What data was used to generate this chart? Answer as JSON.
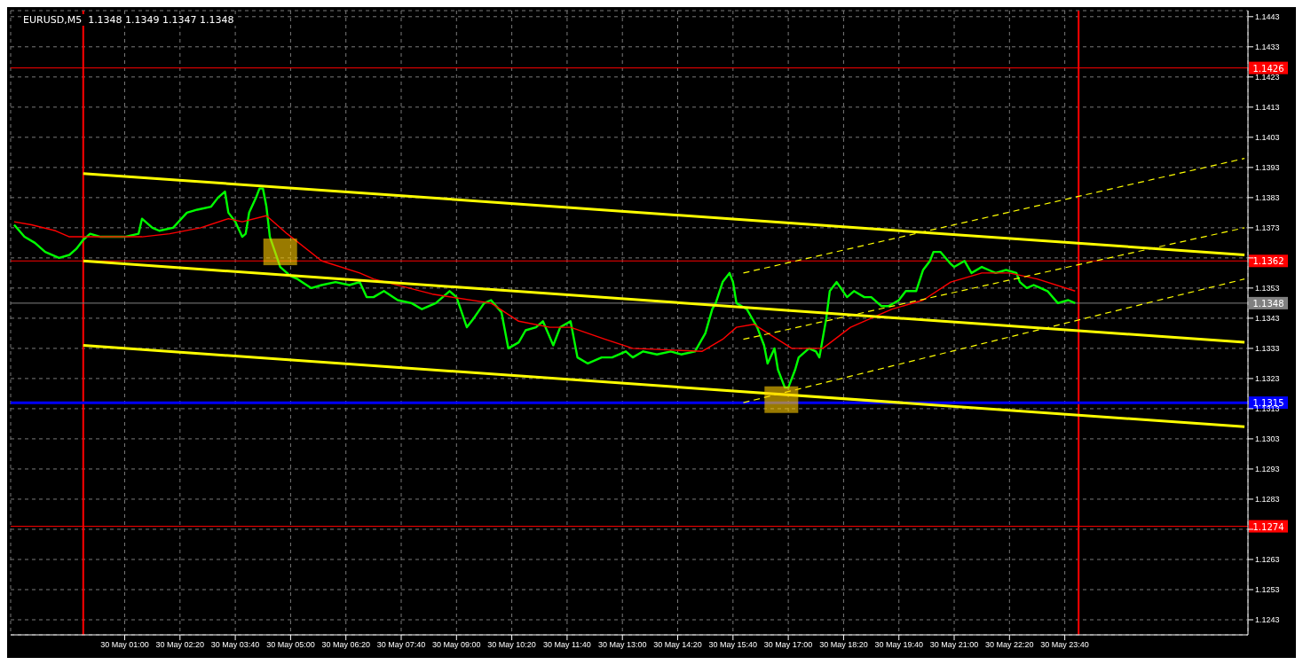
{
  "chart_data": {
    "type": "line",
    "title": "EURUSD,M5  1.1348 1.1349 1.1347 1.1348",
    "xlim": [
      "--05-29T22:15",
      "--05-31T04:05"
    ],
    "ylim": [
      1.1238,
      1.1445
    ],
    "xticks": [
      {
        "value": "--05-30T01:00",
        "label": "30 May 01:00"
      },
      {
        "value": "--05-30T02:20",
        "label": "30 May 02:20"
      },
      {
        "value": "--05-30T03:40",
        "label": "30 May 03:40"
      },
      {
        "value": "--05-30T05:00",
        "label": "30 May 05:00"
      },
      {
        "value": "--05-30T06:20",
        "label": "30 May 06:20"
      },
      {
        "value": "--05-30T07:40",
        "label": "30 May 07:40"
      },
      {
        "value": "--05-30T09:00",
        "label": "30 May 09:00"
      },
      {
        "value": "--05-30T10:20",
        "label": "30 May 10:20"
      },
      {
        "value": "--05-30T11:40",
        "label": "30 May 11:40"
      },
      {
        "value": "--05-30T13:00",
        "label": "30 May 13:00"
      },
      {
        "value": "--05-30T14:20",
        "label": "30 May 14:20"
      },
      {
        "value": "--05-30T15:40",
        "label": "30 May 15:40"
      },
      {
        "value": "--05-30T17:00",
        "label": "30 May 17:00"
      },
      {
        "value": "--05-30T18:20",
        "label": "30 May 18:20"
      },
      {
        "value": "--05-30T19:40",
        "label": "30 May 19:40"
      },
      {
        "value": "--05-30T21:00",
        "label": "30 May 21:00"
      },
      {
        "value": "--05-30T22:20",
        "label": "30 May 22:20"
      },
      {
        "value": "--05-30T23:40",
        "label": "30 May 23:40"
      }
    ],
    "yticks": [
      1.1243,
      1.1253,
      1.1263,
      {
        "value": 1.1273,
        "label": null
      },
      1.1283,
      1.1293,
      1.1303,
      1.1313,
      1.1323,
      1.1333,
      1.1343,
      1.1353,
      {
        "value": 1.1363,
        "label": null
      },
      1.1373,
      1.1383,
      1.1393,
      1.1403,
      1.1413,
      1.1423,
      1.1433,
      1.1443
    ],
    "grid": true,
    "series": [
      {
        "color": "#00ff00",
        "x": [
          "--05-29T22:20",
          "--05-29T22:35",
          "--05-29T22:50",
          "--05-29T23:05",
          "--05-29T23:25",
          "--05-29T23:40",
          "--05-29T23:50",
          "--05-30T00:00",
          "--05-30T00:10",
          "--05-30T00:25",
          "--05-30T00:40",
          "--05-30T01:00",
          "--05-30T01:20",
          "--05-30T01:25",
          "--05-30T01:40",
          "--05-30T01:50",
          "--05-30T02:10",
          "--05-30T02:30",
          "--05-30T02:45",
          "--05-30T03:05",
          "--05-30T03:15",
          "--05-30T03:25",
          "--05-30T03:30",
          "--05-30T03:40",
          "--05-30T03:50",
          "--05-30T03:55",
          "--05-30T04:00",
          "--05-30T04:10",
          "--05-30T04:15",
          "--05-30T04:20",
          "--05-30T04:25",
          "--05-30T04:30",
          "--05-30T04:45",
          "--05-30T05:00",
          "--05-30T05:10",
          "--05-30T05:30",
          "--05-30T05:45",
          "--05-30T06:05",
          "--05-30T06:25",
          "--05-30T06:40",
          "--05-30T06:50",
          "--05-30T07:00",
          "--05-30T07:15",
          "--05-30T07:35",
          "--05-30T07:55",
          "--05-30T08:10",
          "--05-30T08:30",
          "--05-30T08:50",
          "--05-30T09:00",
          "--05-30T09:15",
          "--05-30T09:25",
          "--05-30T09:40",
          "--05-30T09:50",
          "--05-30T10:05",
          "--05-30T10:15",
          "--05-30T10:30",
          "--05-30T10:40",
          "--05-30T10:55",
          "--05-30T11:05",
          "--05-30T11:20",
          "--05-30T11:30",
          "--05-30T11:45",
          "--05-30T11:55",
          "--05-30T12:10",
          "--05-30T12:30",
          "--05-30T12:45",
          "--05-30T13:05",
          "--05-30T13:15",
          "--05-30T13:30",
          "--05-30T13:50",
          "--05-30T14:10",
          "--05-30T14:25",
          "--05-30T14:45",
          "--05-30T15:00",
          "--05-30T15:10",
          "--05-30T15:15",
          "--05-30T15:25",
          "--05-30T15:35",
          "--05-30T15:40",
          "--05-30T15:45",
          "--05-30T16:00",
          "--05-30T16:05",
          "--05-30T16:15",
          "--05-30T16:25",
          "--05-30T16:30",
          "--05-30T16:40",
          "--05-30T16:45",
          "--05-30T16:55",
          "--05-30T17:00",
          "--05-30T17:10",
          "--05-30T17:15",
          "--05-30T17:30",
          "--05-30T17:40",
          "--05-30T17:45",
          "--05-30T17:55",
          "--05-30T18:00",
          "--05-30T18:10",
          "--05-30T18:25",
          "--05-30T18:35",
          "--05-30T18:50",
          "--05-30T19:00",
          "--05-30T19:15",
          "--05-30T19:25",
          "--05-30T19:40",
          "--05-30T19:50",
          "--05-30T20:05",
          "--05-30T20:15",
          "--05-30T20:25",
          "--05-30T20:30",
          "--05-30T20:40",
          "--05-30T20:55",
          "--05-30T21:00",
          "--05-30T21:15",
          "--05-30T21:25",
          "--05-30T21:40",
          "--05-30T21:50",
          "--05-30T22:00",
          "--05-30T22:15",
          "--05-30T22:30",
          "--05-30T22:35",
          "--05-30T22:45",
          "--05-30T22:55",
          "--05-30T23:05",
          "--05-30T23:15",
          "--05-30T23:30",
          "--05-30T23:45",
          "--05-30T23:55"
        ],
        "values": [
          1.1374,
          1.137,
          1.1368,
          1.1365,
          1.1363,
          1.1364,
          1.1366,
          1.1369,
          1.1371,
          1.137,
          1.137,
          1.137,
          1.1371,
          1.1376,
          1.1373,
          1.1372,
          1.1373,
          1.1378,
          1.1379,
          1.138,
          1.1383,
          1.1385,
          1.1378,
          1.1375,
          1.137,
          1.1371,
          1.1378,
          1.1383,
          1.1386,
          1.1386,
          1.138,
          1.137,
          1.136,
          1.1357,
          1.1356,
          1.1353,
          1.1354,
          1.1355,
          1.1354,
          1.1355,
          1.135,
          1.135,
          1.1352,
          1.1349,
          1.1348,
          1.1346,
          1.1348,
          1.1352,
          1.135,
          1.134,
          1.1343,
          1.1348,
          1.1349,
          1.1345,
          1.1333,
          1.1335,
          1.1339,
          1.134,
          1.1342,
          1.1334,
          1.134,
          1.1342,
          1.133,
          1.1328,
          1.133,
          1.133,
          1.1332,
          1.133,
          1.1332,
          1.1331,
          1.1332,
          1.1331,
          1.1332,
          1.1338,
          1.1346,
          1.1348,
          1.1355,
          1.1358,
          1.1355,
          1.1348,
          1.1346,
          1.1344,
          1.134,
          1.1334,
          1.1328,
          1.1333,
          1.1326,
          1.132,
          1.132,
          1.1326,
          1.133,
          1.1333,
          1.1332,
          1.133,
          1.1343,
          1.1352,
          1.1355,
          1.135,
          1.1352,
          1.135,
          1.135,
          1.1347,
          1.1347,
          1.1349,
          1.1352,
          1.1352,
          1.1359,
          1.1362,
          1.1365,
          1.1365,
          1.1361,
          1.136,
          1.1362,
          1.1358,
          1.136,
          1.1359,
          1.1358,
          1.1359,
          1.1358,
          1.1355,
          1.1353,
          1.1354,
          1.1353,
          1.1352,
          1.1348,
          1.1349,
          1.1348
        ]
      },
      {
        "color": "#ff0000",
        "x": [
          "--05-29T22:20",
          "--05-29T22:45",
          "--05-29T23:20",
          "--05-29T23:40",
          "--05-30T00:25",
          "--05-30T01:25",
          "--05-30T02:05",
          "--05-30T02:50",
          "--05-30T03:30",
          "--05-30T03:50",
          "--05-30T04:25",
          "--05-30T04:55",
          "--05-30T05:45",
          "--05-30T06:40",
          "--05-30T07:00",
          "--05-30T08:25",
          "--05-30T09:50",
          "--05-30T10:30",
          "--05-30T11:15",
          "--05-30T11:45",
          "--05-30T12:35",
          "--05-30T13:15",
          "--05-30T14:55",
          "--05-30T15:25",
          "--05-30T15:45",
          "--05-30T16:10",
          "--05-30T17:05",
          "--05-30T17:50",
          "--05-30T18:30",
          "--05-30T19:30",
          "--05-30T20:15",
          "--05-30T20:55",
          "--05-30T21:40",
          "--05-30T22:20",
          "--05-30T23:00",
          "--05-30T23:55"
        ],
        "values": [
          1.1375,
          1.1374,
          1.1372,
          1.137,
          1.137,
          1.137,
          1.1371,
          1.1373,
          1.1376,
          1.1375,
          1.1377,
          1.1371,
          1.1362,
          1.1358,
          1.1356,
          1.1351,
          1.1348,
          1.1342,
          1.134,
          1.134,
          1.1336,
          1.1333,
          1.1332,
          1.1336,
          1.134,
          1.1341,
          1.1333,
          1.1333,
          1.134,
          1.1346,
          1.1349,
          1.1355,
          1.1358,
          1.1358,
          1.1356,
          1.1352
        ]
      },
      {
        "color": "#ffff00",
        "x": [
          "--05-30T00:00",
          "--05-31T04:00"
        ],
        "values": [
          1.1391,
          1.1364
        ]
      },
      {
        "color": "#ffff00",
        "x": [
          "--05-30T00:00",
          "--05-31T04:00"
        ],
        "values": [
          1.1362,
          1.1335
        ]
      },
      {
        "color": "#ffff00",
        "x": [
          "--05-30T00:00",
          "--05-31T04:00"
        ],
        "values": [
          1.1334,
          1.1307
        ]
      },
      {
        "color": "#ffff00",
        "line_style": "dashed",
        "x": [
          "--05-30T15:55",
          "--05-31T04:00"
        ],
        "values": [
          1.1358,
          1.1396
        ]
      },
      {
        "color": "#ffff00",
        "line_style": "dashed",
        "x": [
          "--05-30T15:55",
          "--05-31T04:00"
        ],
        "values": [
          1.1336,
          1.1373
        ]
      },
      {
        "color": "#ffff00",
        "line_style": "dashed",
        "x": [
          "--05-30T15:55",
          "--05-31T04:00"
        ],
        "values": [
          1.1315,
          1.1356
        ]
      },
      {
        "type": "scatter",
        "marker": "square",
        "color": "#ffcc00",
        "x": [
          "--05-30T04:45",
          "--05-30T16:50"
        ],
        "values": [
          1.1365,
          1.1316
        ]
      }
    ],
    "ref_lines": [
      {
        "axis": "x",
        "value": "--05-30T00:00",
        "color": "#ff0000"
      },
      {
        "axis": "x",
        "value": "--05-31T00:00",
        "color": "#ff0000"
      },
      {
        "axis": "y",
        "value": 1.1426,
        "label": "1.1426",
        "color": "#ff0000"
      },
      {
        "axis": "y",
        "value": 1.1362,
        "label": "1.1362",
        "color": "#ff0000"
      },
      {
        "axis": "y",
        "value": 1.1348,
        "label": "1.1348",
        "color": "#808080"
      },
      {
        "axis": "y",
        "value": 1.1315,
        "label": "1.1315",
        "color": "#0000ff"
      },
      {
        "axis": "y",
        "value": 1.1274,
        "label": "1.1274",
        "color": "#ff0000"
      }
    ]
  }
}
